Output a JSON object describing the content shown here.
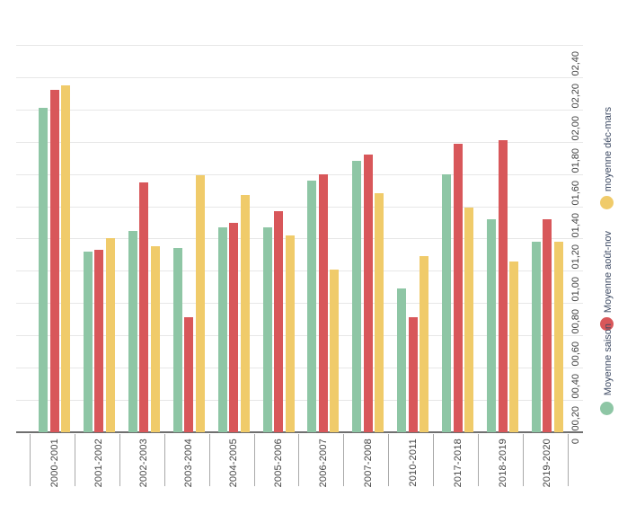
{
  "chart_data": {
    "type": "bar",
    "title": "",
    "orientation": "rotated-90-ccw",
    "categories": [
      "2000-2001",
      "2001-2002",
      "2002-2003",
      "2003-2004",
      "2004-2005",
      "2005-2006",
      "2006-2007",
      "2007-2008",
      "2010-2011",
      "2017-2018",
      "2018-2019",
      "2019-2020"
    ],
    "series": [
      {
        "name": "Moyenne saison",
        "color": "#8ec6a5",
        "values": [
          2.01,
          1.12,
          1.25,
          1.14,
          1.27,
          1.27,
          1.56,
          1.68,
          0.89,
          1.6,
          1.32,
          1.18
        ]
      },
      {
        "name": "Moyenne août-nov",
        "color": "#d8575a",
        "values": [
          2.12,
          1.13,
          1.55,
          0.71,
          1.3,
          1.37,
          1.6,
          1.72,
          0.71,
          1.79,
          1.81,
          1.32
        ]
      },
      {
        "name": "moyenne déc-mars",
        "color": "#f0cb6a",
        "values": [
          2.15,
          1.2,
          1.15,
          1.59,
          1.47,
          1.22,
          1.01,
          1.48,
          1.09,
          1.39,
          1.06,
          1.18
        ]
      }
    ],
    "value_axis": {
      "min": 0,
      "max": 2.4,
      "step": 0.2,
      "tick_labels": [
        "0",
        "00,20",
        "00,40",
        "00,60",
        "00,80",
        "01,00",
        "01,20",
        "01,40",
        "01,60",
        "01,80",
        "02,00",
        "02,20",
        "02,40"
      ],
      "position": "right",
      "label_rotation_deg": -90
    },
    "category_axis": {
      "position": "bottom",
      "label_rotation_deg": -90
    },
    "grid": true,
    "legend": {
      "position": "right",
      "entries_top_to_bottom": [
        {
          "label": "moyenne déc-mars",
          "color": "#f0cb6a"
        },
        {
          "label": "Moyenne août-nov",
          "color": "#d8575a"
        },
        {
          "label": "Moyenne saison",
          "color": "#8ec6a5"
        }
      ]
    },
    "colors": {
      "gridline": "#e7e7e7",
      "axis_line": "#6f6f6f",
      "axis_text": "#434343",
      "legend_text": "#3d4a63",
      "background": "#ffffff"
    }
  }
}
